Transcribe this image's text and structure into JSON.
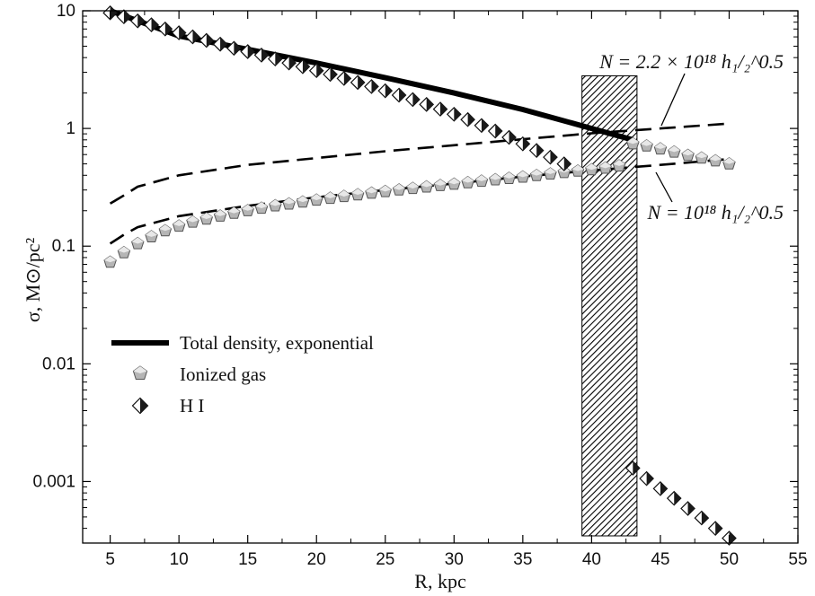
{
  "chart_data": {
    "type": "scatter",
    "title": "",
    "xlabel": "R, kpc",
    "ylabel": "σ, M⊙/pc²",
    "xlim": [
      3,
      55
    ],
    "ylim": [
      0.0003,
      10
    ],
    "yscale": "log",
    "grid": false,
    "legend_position": "middle-left",
    "x_ticks": [
      "5",
      "10",
      "15",
      "20",
      "25",
      "30",
      "35",
      "40",
      "45",
      "50",
      "55"
    ],
    "y_ticks": [
      "0.001",
      "0.01",
      "0.1",
      "1",
      "10"
    ],
    "series": [
      {
        "name": "Total density, exponential",
        "kind": "line",
        "color": "#000000",
        "x": [
          5,
          10,
          15,
          20,
          25,
          30,
          35,
          40,
          43
        ],
        "y": [
          10,
          6.1,
          4.7,
          3.6,
          2.7,
          2.0,
          1.45,
          1.0,
          0.8
        ]
      },
      {
        "name": "Ionized gas",
        "kind": "marker",
        "marker": "pentagon",
        "color": "#9a9a9a",
        "x": [
          5,
          6,
          7,
          8,
          9,
          10,
          11,
          12,
          13,
          14,
          15,
          16,
          17,
          18,
          19,
          20,
          21,
          22,
          23,
          24,
          25,
          26,
          27,
          28,
          29,
          30,
          31,
          32,
          33,
          34,
          35,
          36,
          37,
          38,
          39,
          40,
          41,
          42,
          43,
          44,
          45,
          46,
          47,
          48,
          49,
          50
        ],
        "y": [
          0.073,
          0.088,
          0.105,
          0.12,
          0.135,
          0.148,
          0.16,
          0.17,
          0.18,
          0.19,
          0.2,
          0.21,
          0.22,
          0.228,
          0.237,
          0.246,
          0.255,
          0.264,
          0.273,
          0.282,
          0.291,
          0.3,
          0.309,
          0.318,
          0.327,
          0.336,
          0.346,
          0.356,
          0.366,
          0.376,
          0.386,
          0.398,
          0.41,
          0.422,
          0.434,
          0.446,
          0.46,
          0.48,
          0.74,
          0.71,
          0.67,
          0.63,
          0.59,
          0.56,
          0.53,
          0.5
        ]
      },
      {
        "name": "H I",
        "kind": "marker",
        "marker": "diamond",
        "color": "#222222",
        "x": [
          5,
          6,
          7,
          8,
          9,
          10,
          11,
          12,
          13,
          14,
          15,
          16,
          17,
          18,
          19,
          20,
          21,
          22,
          23,
          24,
          25,
          26,
          27,
          28,
          29,
          30,
          31,
          32,
          33,
          34,
          35,
          36,
          37,
          38,
          43,
          44,
          45,
          46,
          47,
          48,
          49,
          50
        ],
        "y": [
          9.6,
          8.9,
          8.2,
          7.6,
          7.0,
          6.5,
          6.0,
          5.6,
          5.2,
          4.8,
          4.5,
          4.2,
          3.9,
          3.6,
          3.35,
          3.1,
          2.88,
          2.66,
          2.46,
          2.27,
          2.09,
          1.92,
          1.76,
          1.6,
          1.46,
          1.32,
          1.19,
          1.06,
          0.95,
          0.84,
          0.74,
          0.65,
          0.57,
          0.5,
          0.0013,
          0.00106,
          0.00087,
          0.00072,
          0.00059,
          0.00049,
          0.0004,
          0.00033
        ]
      },
      {
        "name": "",
        "kind": "dashed",
        "color": "#000000",
        "x": [
          5,
          6,
          7,
          10,
          15,
          20,
          25,
          30,
          35,
          40,
          45,
          50
        ],
        "y": [
          0.23,
          0.27,
          0.32,
          0.4,
          0.49,
          0.56,
          0.64,
          0.72,
          0.81,
          0.91,
          1.0,
          1.1
        ]
      },
      {
        "name": "",
        "kind": "dashed",
        "color": "#000000",
        "x": [
          5,
          6,
          7,
          10,
          15,
          20,
          25,
          30,
          35,
          40,
          45,
          50
        ],
        "y": [
          0.105,
          0.125,
          0.145,
          0.18,
          0.22,
          0.26,
          0.3,
          0.34,
          0.39,
          0.44,
          0.49,
          0.55
        ]
      }
    ],
    "hatched_band": {
      "x": [
        39.3,
        43.3
      ]
    },
    "annotations": {
      "upper": "N = 2.2 × 10¹⁸ h₁/₂^0.5",
      "lower": "N = 10¹⁸ h₁/₂^0.5"
    }
  }
}
